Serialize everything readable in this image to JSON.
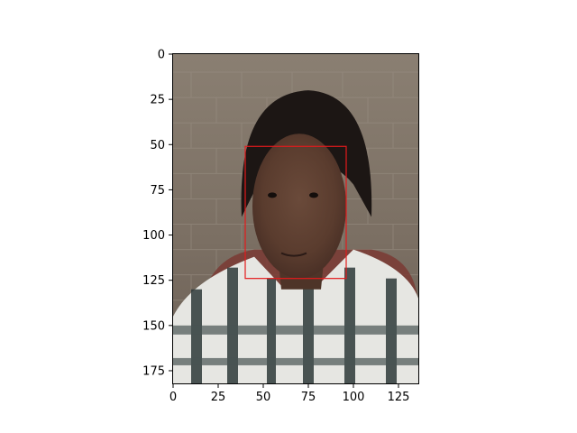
{
  "chart_data": {
    "type": "image",
    "image_description": "photo of a boy wearing a striped shirt in front of a brick wall",
    "xlim": [
      0,
      136
    ],
    "ylim": [
      182,
      0
    ],
    "x_ticks": [
      0,
      25,
      50,
      75,
      100,
      125
    ],
    "y_ticks": [
      0,
      25,
      50,
      75,
      100,
      125,
      150,
      175
    ],
    "annotation": {
      "type": "rectangle",
      "x0": 40,
      "y0": 51,
      "x1": 96,
      "y1": 124,
      "color": "#e41a1c"
    },
    "grid": false
  }
}
